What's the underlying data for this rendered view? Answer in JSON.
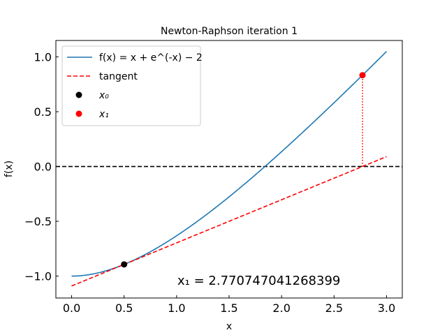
{
  "chart_data": {
    "type": "line",
    "title": "Newton-Raphson iteration 1",
    "xlabel": "x",
    "ylabel": "f(x)",
    "xlim": [
      -0.15,
      3.15
    ],
    "ylim": [
      -1.2,
      1.15
    ],
    "xticks": [
      0.0,
      0.5,
      1.0,
      1.5,
      2.0,
      2.5,
      3.0
    ],
    "xtick_labels": [
      "0.0",
      "0.5",
      "1.0",
      "1.5",
      "2.0",
      "2.5",
      "3.0"
    ],
    "yticks": [
      1.0,
      0.5,
      0.0,
      -0.5,
      -1.0
    ],
    "ytick_labels": [
      "1.0",
      "0.5",
      "0.0",
      "−0.5",
      "−1.0"
    ],
    "function": "x + exp(-x) - 2",
    "function_domain": [
      0,
      3
    ],
    "tangent": {
      "x0": 0.5,
      "y0": -0.8934693402873666,
      "slope": 0.3934693402873666,
      "domain": [
        0,
        3
      ]
    },
    "x0_point": {
      "x": 0.5,
      "y": -0.8934693402873666
    },
    "x1_point": {
      "x": 2.770747041268399,
      "y": 0.8334020657
    },
    "zero_line_y": 0,
    "colors": {
      "function": "#1f77b4",
      "tangent": "#ff0000",
      "x0": "#000000",
      "x1": "#ff0000",
      "zero_line": "#000000"
    },
    "legend": {
      "placement": "top-left",
      "entries": [
        {
          "label": "f(x) = x + e^(-x) − 2",
          "color": "#1f77b4",
          "style": "solid"
        },
        {
          "label": "tangent",
          "color": "#ff0000",
          "style": "dashed"
        },
        {
          "label": "x₀",
          "color": "#000000",
          "style": "marker"
        },
        {
          "label": "x₁",
          "color": "#ff0000",
          "style": "marker"
        }
      ]
    },
    "annotation": "x₁ = 2.770747041268399",
    "grid": false
  }
}
